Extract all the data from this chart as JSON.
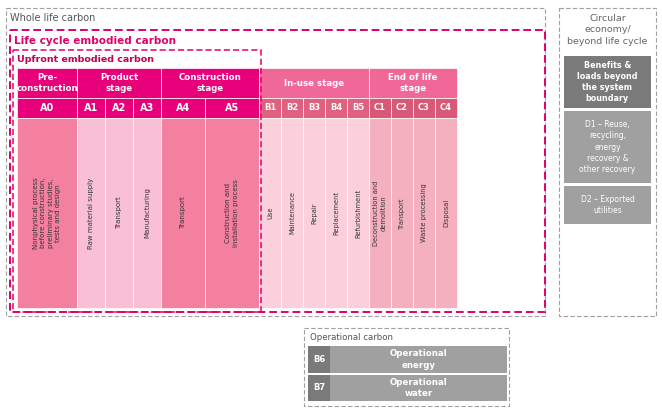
{
  "bg_color": "#ffffff",
  "whole_life_label": "Whole life carbon",
  "lc_label": "Life cycle embodied carbon",
  "upfront_label": "Upfront embodied carbon",
  "circular_label": "Circular\neconomy/\nbeyond life cycle",
  "operational_label": "Operational carbon",
  "color_hot_pink": "#e0006a",
  "color_pink_header": "#e8007a",
  "color_pink_mid": "#f06898",
  "color_pink_light": "#f9c0d5",
  "color_pink_very_light": "#fde8f0",
  "color_salmon": "#f090a8",
  "color_gray_dark": "#7a7a7a",
  "color_gray_mid": "#a0a0a0",
  "color_gray_light": "#c0c0c0",
  "stage_labels_A": [
    "Nonphysical process\nbefore construction,\npreliminary studies,\ntests and design",
    "Raw material supply",
    "Transport",
    "Manufacturing",
    "Transport",
    "Construction and\ninstallation process"
  ],
  "stage_labels_B": [
    "Use",
    "Maintenance",
    "Repair",
    "Replacement",
    "Refurbishment",
    "Deconstruction and\ndemolition",
    "Transport",
    "Waste processing",
    "Disposal"
  ],
  "benefits_header": "Benefits &\nloads beyond\nthe system\nboundary",
  "d1_text": "D1 – Reuse,\nrecycling,\nenergy\nrecovery &\nother recovery",
  "d2_text": "D2 – Exported\nutilities",
  "b6_label": "B6",
  "b7_label": "B7",
  "b6_text": "Operational\nenergy",
  "b7_text": "Operational\nwater"
}
